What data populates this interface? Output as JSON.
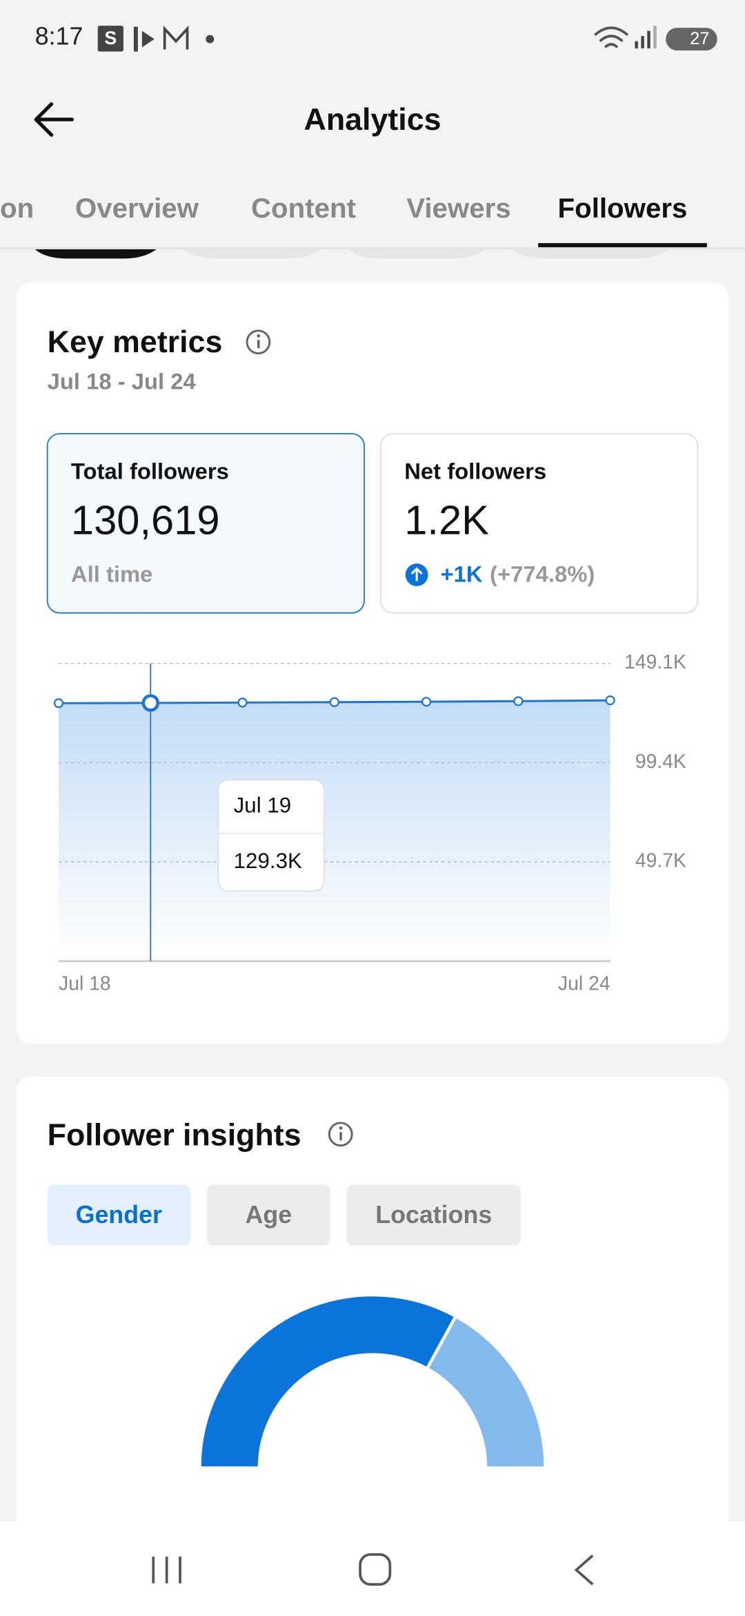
{
  "status_bar": {
    "time": "8:17",
    "battery": "27"
  },
  "header": {
    "title": "Analytics"
  },
  "tabs": {
    "items": [
      "on",
      "Overview",
      "Content",
      "Viewers",
      "Followers"
    ],
    "active": 4
  },
  "key_metrics": {
    "title": "Key metrics",
    "date_range": "Jul 18 - Jul 24",
    "cards": [
      {
        "label": "Total followers",
        "value": "130,619",
        "note": "All time"
      },
      {
        "label": "Net followers",
        "value": "1.2K",
        "change": "+1K",
        "change_percent": "(+774.8%)"
      }
    ]
  },
  "chart_data": {
    "type": "line",
    "categories": [
      "Jul 18",
      null,
      null,
      null,
      null,
      null,
      "Jul 24"
    ],
    "values": [
      129200,
      129300,
      129500,
      129700,
      129900,
      130200,
      130600
    ],
    "color": "#1b74d4",
    "ylim": [
      0,
      149100
    ],
    "yticks": [
      {
        "value": 49700,
        "label": "49.7K"
      },
      {
        "value": 99400,
        "label": "99.4K"
      },
      {
        "value": 149100,
        "label": "149.1K"
      }
    ],
    "grid": true,
    "tooltip": {
      "category": "Jul 19",
      "value_label": "129.3K"
    }
  },
  "follower_insights": {
    "title": "Follower insights",
    "filters": [
      "Gender",
      "Age",
      "Locations"
    ],
    "active_filter": 0,
    "gender_chart": {
      "type": "donut",
      "values": [
        66,
        34
      ],
      "colors": [
        "#0a74da",
        "#84b9ee"
      ]
    }
  }
}
